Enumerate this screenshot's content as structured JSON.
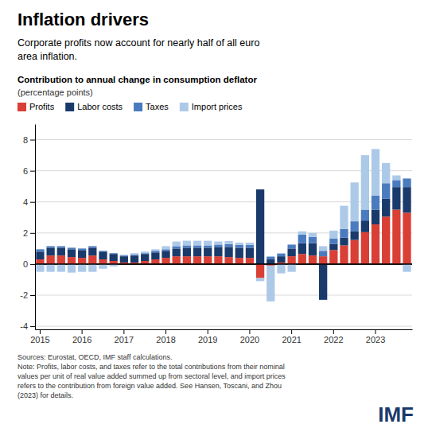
{
  "chart_data": {
    "type": "bar",
    "stacked": true,
    "grid": true,
    "legend": "top",
    "title": "Inflation drivers",
    "subtitle": "Corporate profits now account for nearly half of all euro\narea inflation.",
    "annotations": [
      "Contribution to annual change in consumption deflator",
      "(percentage points)",
      "Sources: Eurostat, OECD, IMF staff calculations.\nNote: Profits, labor costs, and taxes refer to the total contributions from their nominal\nvalues per unit of real value added summed up from sectoral level, and import prices\nrefers to the contribution from foreign value added. See Hansen, Toscani, and Zhou\n(2023) for details.",
      "IMF"
    ],
    "categories": [
      "2015",
      null,
      null,
      null,
      "2016",
      null,
      null,
      null,
      "2017",
      null,
      null,
      null,
      "2018",
      null,
      null,
      null,
      "2019",
      null,
      null,
      null,
      "2020",
      null,
      null,
      null,
      "2021",
      null,
      null,
      null,
      "2022",
      null,
      null,
      null,
      "2023",
      null,
      null,
      null
    ],
    "series": [
      {
        "name": "Profits",
        "color": "#d93f35",
        "values": [
          0.3,
          0.55,
          0.55,
          0.45,
          0.4,
          0.55,
          0.3,
          0.2,
          0.1,
          0.1,
          0.2,
          0.3,
          0.4,
          0.5,
          0.5,
          0.5,
          0.5,
          0.5,
          0.45,
          0.4,
          0.4,
          -0.9,
          -0.1,
          0.1,
          0.5,
          0.65,
          0.55,
          0.5,
          0.9,
          1.2,
          1.55,
          2.05,
          2.55,
          3.05,
          3.5,
          3.3
        ]
      },
      {
        "name": "Labor costs",
        "color": "#1a3a6b",
        "values": [
          0.5,
          0.5,
          0.5,
          0.5,
          0.5,
          0.5,
          0.5,
          0.45,
          0.4,
          0.45,
          0.45,
          0.45,
          0.45,
          0.5,
          0.55,
          0.55,
          0.55,
          0.6,
          0.65,
          0.65,
          0.65,
          4.8,
          0.3,
          0.4,
          0.5,
          0.7,
          0.8,
          -2.3,
          0.4,
          0.5,
          0.55,
          0.75,
          0.95,
          1.15,
          1.45,
          1.65
        ]
      },
      {
        "name": "Taxes",
        "color": "#4b7bbf",
        "values": [
          0.15,
          0.1,
          0.1,
          0.1,
          0.1,
          0.1,
          0.05,
          0.05,
          0.05,
          0.05,
          0.05,
          0.1,
          0.1,
          0.15,
          0.15,
          0.15,
          0.15,
          0.15,
          0.18,
          0.18,
          0.18,
          0.0,
          0.18,
          0.18,
          0.25,
          0.55,
          0.4,
          0.35,
          0.35,
          0.55,
          0.65,
          0.7,
          0.9,
          1.0,
          0.45,
          0.55
        ]
      },
      {
        "name": "Import prices",
        "color": "#adc9e8",
        "values": [
          -0.5,
          -0.5,
          -0.5,
          -0.55,
          -0.5,
          -0.5,
          -0.3,
          -0.15,
          0.05,
          0.1,
          0.1,
          0.1,
          0.2,
          0.3,
          0.3,
          0.3,
          0.3,
          0.2,
          0.2,
          0.15,
          0.15,
          -0.2,
          -2.3,
          -0.6,
          -0.5,
          0.2,
          0.25,
          0.3,
          0.5,
          1.5,
          2.5,
          3.5,
          3.0,
          1.3,
          0.3,
          -0.5
        ]
      }
    ],
    "ylim": [
      -4.2,
      9.0
    ],
    "yticks": [
      -4,
      -2,
      0,
      2,
      4,
      6,
      8
    ]
  }
}
